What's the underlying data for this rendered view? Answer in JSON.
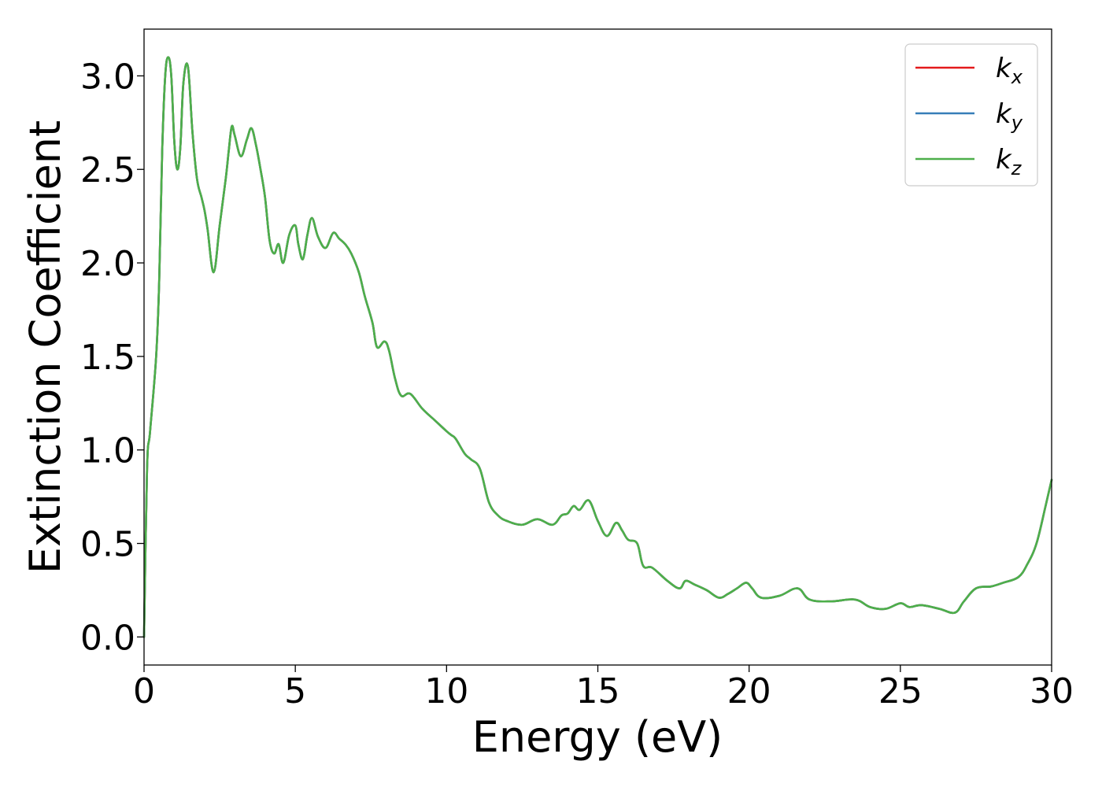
{
  "chart_data": {
    "type": "line",
    "xlabel": "Energy (eV)",
    "ylabel": "Extinction Coefficient",
    "xlim": [
      0,
      30
    ],
    "ylim": [
      -0.15,
      3.25
    ],
    "xticks": [
      0,
      5,
      10,
      15,
      20,
      25,
      30
    ],
    "xtick_labels": [
      "0",
      "5",
      "10",
      "15",
      "20",
      "25",
      "30"
    ],
    "yticks": [
      0.0,
      0.5,
      1.0,
      1.5,
      2.0,
      2.5,
      3.0
    ],
    "ytick_labels": [
      "0.0",
      "0.5",
      "1.0",
      "1.5",
      "2.0",
      "2.5",
      "3.0"
    ],
    "grid": false,
    "legend_position": "top-right",
    "x": [
      0,
      0.1,
      0.2,
      0.4,
      0.5,
      0.6,
      0.7,
      0.8,
      0.9,
      1.0,
      1.1,
      1.2,
      1.3,
      1.45,
      1.6,
      1.75,
      1.9,
      2.0,
      2.1,
      2.3,
      2.5,
      2.7,
      2.8,
      2.9,
      3.0,
      3.2,
      3.4,
      3.55,
      3.7,
      3.85,
      4.0,
      4.15,
      4.3,
      4.45,
      4.6,
      4.8,
      5.0,
      5.1,
      5.25,
      5.4,
      5.55,
      5.75,
      6.0,
      6.25,
      6.45,
      6.65,
      6.85,
      7.1,
      7.3,
      7.55,
      7.7,
      7.95,
      8.1,
      8.3,
      8.5,
      8.8,
      9.2,
      9.6,
      10.0,
      10.15,
      10.3,
      10.6,
      10.8,
      11.1,
      11.4,
      11.7,
      12.0,
      12.5,
      13.0,
      13.5,
      13.8,
      14.0,
      14.2,
      14.4,
      14.7,
      15.0,
      15.3,
      15.6,
      15.8,
      16.0,
      16.3,
      16.5,
      16.8,
      17.3,
      17.7,
      17.9,
      18.2,
      18.6,
      19.0,
      19.3,
      19.6,
      19.9,
      20.1,
      20.4,
      21.0,
      21.6,
      22.0,
      22.7,
      23.5,
      24.0,
      24.5,
      25.0,
      25.3,
      25.7,
      26.3,
      26.8,
      27.1,
      27.5,
      28.0,
      28.4,
      28.9,
      29.2,
      29.5,
      29.8,
      30.0
    ],
    "series": [
      {
        "name": "k_x",
        "label_main": "k",
        "label_sub": "x",
        "color": "#e41a1c",
        "values": [
          0.0,
          0.9,
          1.1,
          1.5,
          1.9,
          2.6,
          3.0,
          3.1,
          3.0,
          2.65,
          2.5,
          2.62,
          2.96,
          3.05,
          2.7,
          2.45,
          2.35,
          2.28,
          2.18,
          1.95,
          2.2,
          2.45,
          2.6,
          2.73,
          2.68,
          2.57,
          2.66,
          2.72,
          2.63,
          2.5,
          2.35,
          2.12,
          2.05,
          2.1,
          2.0,
          2.15,
          2.2,
          2.1,
          2.02,
          2.15,
          2.24,
          2.14,
          2.08,
          2.16,
          2.13,
          2.1,
          2.05,
          1.95,
          1.82,
          1.68,
          1.55,
          1.58,
          1.53,
          1.38,
          1.29,
          1.3,
          1.22,
          1.16,
          1.1,
          1.08,
          1.06,
          0.98,
          0.95,
          0.9,
          0.72,
          0.65,
          0.62,
          0.6,
          0.63,
          0.6,
          0.65,
          0.66,
          0.7,
          0.68,
          0.73,
          0.62,
          0.54,
          0.61,
          0.57,
          0.52,
          0.5,
          0.38,
          0.37,
          0.3,
          0.26,
          0.3,
          0.28,
          0.25,
          0.21,
          0.23,
          0.26,
          0.29,
          0.26,
          0.21,
          0.22,
          0.26,
          0.2,
          0.19,
          0.2,
          0.16,
          0.15,
          0.18,
          0.16,
          0.17,
          0.15,
          0.13,
          0.19,
          0.26,
          0.27,
          0.29,
          0.32,
          0.39,
          0.5,
          0.7,
          0.84
        ]
      },
      {
        "name": "k_y",
        "label_main": "k",
        "label_sub": "y",
        "color": "#377eb8",
        "values": [
          0.0,
          0.9,
          1.1,
          1.5,
          1.9,
          2.6,
          3.0,
          3.1,
          3.0,
          2.65,
          2.5,
          2.62,
          2.96,
          3.05,
          2.7,
          2.45,
          2.35,
          2.28,
          2.18,
          1.95,
          2.2,
          2.45,
          2.6,
          2.73,
          2.68,
          2.57,
          2.66,
          2.72,
          2.63,
          2.5,
          2.35,
          2.12,
          2.05,
          2.1,
          2.0,
          2.15,
          2.2,
          2.1,
          2.02,
          2.15,
          2.24,
          2.14,
          2.08,
          2.16,
          2.13,
          2.1,
          2.05,
          1.95,
          1.82,
          1.68,
          1.55,
          1.58,
          1.53,
          1.38,
          1.29,
          1.3,
          1.22,
          1.16,
          1.1,
          1.08,
          1.06,
          0.98,
          0.95,
          0.9,
          0.72,
          0.65,
          0.62,
          0.6,
          0.63,
          0.6,
          0.65,
          0.66,
          0.7,
          0.68,
          0.73,
          0.62,
          0.54,
          0.61,
          0.57,
          0.52,
          0.5,
          0.38,
          0.37,
          0.3,
          0.26,
          0.3,
          0.28,
          0.25,
          0.21,
          0.23,
          0.26,
          0.29,
          0.26,
          0.21,
          0.22,
          0.26,
          0.2,
          0.19,
          0.2,
          0.16,
          0.15,
          0.18,
          0.16,
          0.17,
          0.15,
          0.13,
          0.19,
          0.26,
          0.27,
          0.29,
          0.32,
          0.39,
          0.5,
          0.7,
          0.84
        ]
      },
      {
        "name": "k_z",
        "label_main": "k",
        "label_sub": "z",
        "color": "#4daf4a",
        "values": [
          0.0,
          0.9,
          1.1,
          1.5,
          1.9,
          2.6,
          3.0,
          3.1,
          3.0,
          2.65,
          2.5,
          2.62,
          2.96,
          3.05,
          2.7,
          2.45,
          2.35,
          2.28,
          2.18,
          1.95,
          2.2,
          2.45,
          2.6,
          2.73,
          2.68,
          2.57,
          2.66,
          2.72,
          2.63,
          2.5,
          2.35,
          2.12,
          2.05,
          2.1,
          2.0,
          2.15,
          2.2,
          2.1,
          2.02,
          2.15,
          2.24,
          2.14,
          2.08,
          2.16,
          2.13,
          2.1,
          2.05,
          1.95,
          1.82,
          1.68,
          1.55,
          1.58,
          1.53,
          1.38,
          1.29,
          1.3,
          1.22,
          1.16,
          1.1,
          1.08,
          1.06,
          0.98,
          0.95,
          0.9,
          0.72,
          0.65,
          0.62,
          0.6,
          0.63,
          0.6,
          0.65,
          0.66,
          0.7,
          0.68,
          0.73,
          0.62,
          0.54,
          0.61,
          0.57,
          0.52,
          0.5,
          0.38,
          0.37,
          0.3,
          0.26,
          0.3,
          0.28,
          0.25,
          0.21,
          0.23,
          0.26,
          0.29,
          0.26,
          0.21,
          0.22,
          0.26,
          0.2,
          0.19,
          0.2,
          0.16,
          0.15,
          0.18,
          0.16,
          0.17,
          0.15,
          0.13,
          0.19,
          0.26,
          0.27,
          0.29,
          0.32,
          0.39,
          0.5,
          0.7,
          0.84
        ]
      }
    ]
  }
}
